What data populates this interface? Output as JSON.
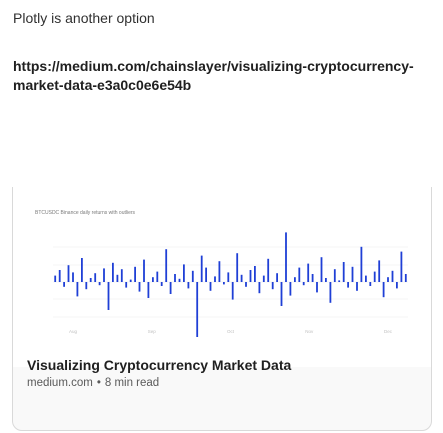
{
  "message": {
    "intro_text": "Plotly is another option",
    "link_url": "https://medium.com/chainslayer/visualizing-cryptocurrency-market-data-e3a0c0e6e54b"
  },
  "link_card": {
    "title": "Visualizing Cryptocurrency Market Data",
    "site": "medium.com",
    "separator": "•",
    "read_time": "8 min read"
  },
  "chart_data": {
    "type": "bar",
    "title": "BTCUSDC Binance daily returns with outliers",
    "x_ticks": [
      "Aug",
      "Sep",
      "Oct",
      "Nov",
      "Dec"
    ],
    "series": [
      {
        "values": [
          0.8,
          1.5,
          -0.6,
          2.1,
          1.2,
          -1.8,
          3.0,
          -0.9,
          0.5,
          1.1,
          -0.4,
          1.7,
          -3.5,
          2.4,
          0.9,
          1.6,
          -0.7,
          0.3,
          1.9,
          -1.2,
          2.8,
          -2.0,
          0.6,
          1.3,
          -0.5,
          4.1,
          -1.5,
          1.0,
          0.4,
          2.2,
          -0.8,
          1.4,
          -9.5,
          3.3,
          1.8,
          -1.1,
          0.7,
          2.6,
          -0.3,
          1.2,
          -2.2,
          3.6,
          0.9,
          -0.6,
          1.5,
          2.0,
          -1.4,
          0.8,
          2.9,
          -0.9,
          1.1,
          -3.0,
          6.2,
          -1.7,
          0.6,
          1.8,
          -0.4,
          2.3,
          1.0,
          -1.3,
          3.1,
          0.5,
          -2.6,
          1.6,
          0.2,
          2.5,
          -0.7,
          1.9,
          -1.1,
          4.4,
          0.8,
          -0.5,
          1.3,
          2.7,
          -1.9,
          0.6,
          1.4,
          -0.8,
          3.8,
          1.0
        ]
      }
    ],
    "colors": {
      "bar": "#1f3fd6",
      "grid": "#ebebeb",
      "axis_text": "#c0c0c0"
    }
  }
}
